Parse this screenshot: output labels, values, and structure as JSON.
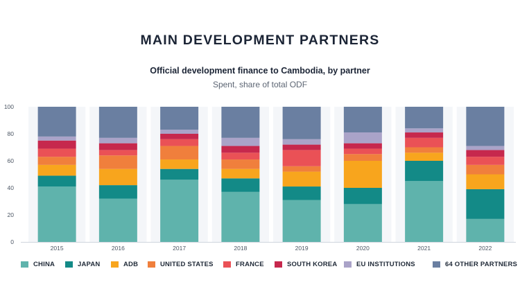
{
  "header": {
    "title": "MAIN DEVELOPMENT PARTNERS",
    "subtitle": "Official development finance to Cambodia, by partner",
    "note": "Spent, share of total ODF"
  },
  "chart_data": {
    "type": "bar",
    "stacked": true,
    "categories": [
      "2015",
      "2016",
      "2017",
      "2018",
      "2019",
      "2020",
      "2021",
      "2022"
    ],
    "ylim": [
      0,
      100
    ],
    "yticks": [
      0,
      20,
      40,
      60,
      80,
      100
    ],
    "grid": false,
    "legend_position": "bottom",
    "series": [
      {
        "name": "CHINA",
        "color": "#5fb3ac",
        "values": [
          41,
          32,
          46,
          37,
          31,
          28,
          45,
          17
        ]
      },
      {
        "name": "JAPAN",
        "color": "#138a87",
        "values": [
          8,
          10,
          8,
          10,
          10,
          12,
          15,
          22
        ]
      },
      {
        "name": "ADB",
        "color": "#f8a51d",
        "values": [
          8,
          12,
          7,
          7,
          11,
          20,
          6,
          11
        ]
      },
      {
        "name": "UNITED STATES",
        "color": "#f07f3c",
        "values": [
          6,
          10,
          10,
          7,
          4,
          5,
          4,
          7
        ]
      },
      {
        "name": "FRANCE",
        "color": "#ea5156",
        "values": [
          6,
          4,
          5,
          5,
          12,
          4,
          7,
          6
        ]
      },
      {
        "name": "SOUTH KOREA",
        "color": "#c6284d",
        "values": [
          6,
          5,
          4,
          5,
          4,
          4,
          4,
          5
        ]
      },
      {
        "name": "EU INSTITUTIONS",
        "color": "#aaa3c8",
        "values": [
          3,
          4,
          3,
          6,
          4,
          8,
          3,
          3
        ]
      },
      {
        "name": "64 OTHER PARTNERS",
        "color": "#6a7fa1",
        "values": [
          22,
          23,
          17,
          23,
          24,
          19,
          16,
          29
        ]
      }
    ]
  }
}
